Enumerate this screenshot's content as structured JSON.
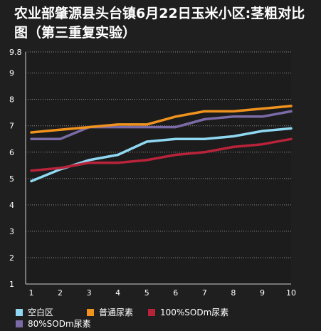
{
  "title": "农业部肇源县头台镇6月22日玉米小区:茎粗对比图（第三重复实验）",
  "chart_data": {
    "type": "line",
    "title": "农业部肇源县头台镇6月22日玉米小区:茎粗对比图（第三重复实验）",
    "x": [
      "1",
      "2",
      "3",
      "4",
      "5",
      "6",
      "7",
      "8",
      "9",
      "10"
    ],
    "y_ticks": [
      "1",
      "2",
      "3",
      "4",
      "5",
      "6",
      "7",
      "8",
      "9",
      "9.8"
    ],
    "ylim": [
      1,
      9.8
    ],
    "grid": true,
    "legend_position": "bottom",
    "series": [
      {
        "name": "空白区",
        "color": "#8fd8f2",
        "values": [
          4.9,
          5.35,
          5.7,
          5.9,
          6.4,
          6.5,
          6.5,
          6.6,
          6.8,
          6.9
        ]
      },
      {
        "name": "普通尿素",
        "color": "#f0921e",
        "values": [
          6.75,
          6.85,
          6.95,
          7.05,
          7.05,
          7.35,
          7.55,
          7.55,
          7.65,
          7.75
        ]
      },
      {
        "name": "100%SODm尿素",
        "color": "#b8233a",
        "values": [
          5.3,
          5.4,
          5.6,
          5.6,
          5.7,
          5.9,
          6.0,
          6.2,
          6.3,
          6.5
        ]
      },
      {
        "name": "80%SODm尿素",
        "color": "#7a6aa6",
        "values": [
          6.5,
          6.5,
          6.95,
          6.95,
          6.95,
          6.95,
          7.25,
          7.35,
          7.35,
          7.55
        ]
      }
    ]
  }
}
